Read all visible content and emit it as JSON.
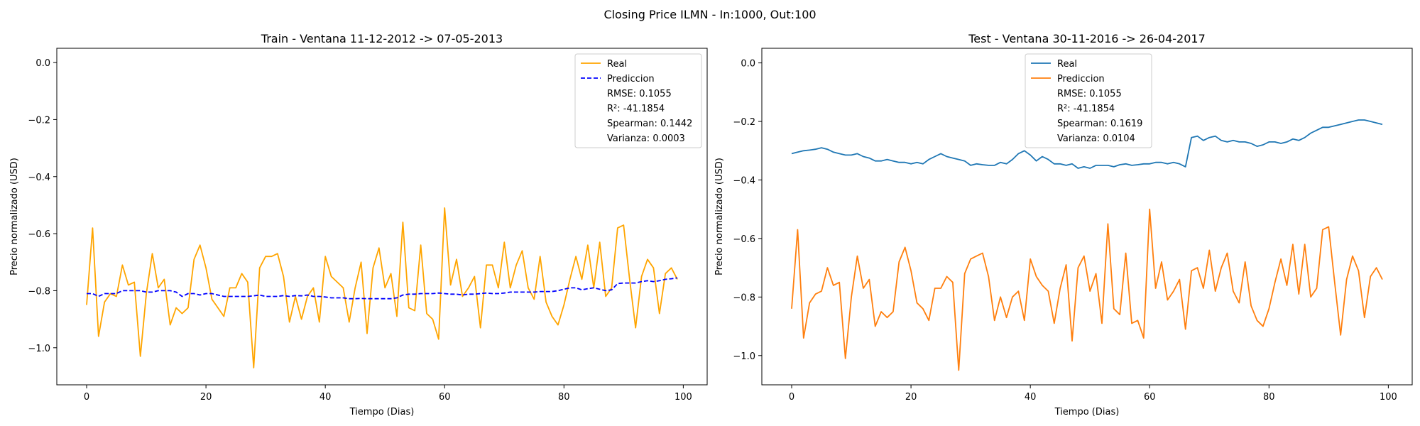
{
  "suptitle": "Closing Price ILMN - In:1000, Out:100",
  "colors": {
    "orange": "#ffa500",
    "blue_dashed": "#0000ff",
    "tab_blue": "#1f77b4",
    "tab_orange": "#ff7f0e"
  },
  "chart_data": [
    {
      "type": "line",
      "title": "Train - Ventana 11-12-2012 -> 07-05-2013",
      "xlabel": "Tiempo (Dias)",
      "ylabel": "Precio normalizado (USD)",
      "xlim": [
        -5,
        104
      ],
      "ylim": [
        -1.13,
        0.05
      ],
      "xticks": [
        0,
        20,
        40,
        60,
        80,
        100
      ],
      "yticks": [
        0.0,
        -0.2,
        -0.4,
        -0.6,
        -0.8,
        -1.0
      ],
      "ytick_labels": [
        "0.0",
        "−0.2",
        "−0.4",
        "−0.6",
        "−0.8",
        "−1.0"
      ],
      "grid": false,
      "legend_position": "top-right",
      "legend": [
        "Real",
        "Prediccion",
        "RMSE: 0.1055",
        "R²: -41.1854",
        "Spearman: 0.1442",
        "Varianza: 0.0003"
      ],
      "series": [
        {
          "name": "Real",
          "color": "#ffa500",
          "style": "solid",
          "values": [
            -0.85,
            -0.58,
            -0.96,
            -0.84,
            -0.81,
            -0.82,
            -0.71,
            -0.78,
            -0.77,
            -1.03,
            -0.81,
            -0.67,
            -0.79,
            -0.76,
            -0.92,
            -0.86,
            -0.88,
            -0.86,
            -0.69,
            -0.64,
            -0.72,
            -0.83,
            -0.86,
            -0.89,
            -0.79,
            -0.79,
            -0.74,
            -0.77,
            -1.07,
            -0.72,
            -0.68,
            -0.68,
            -0.67,
            -0.75,
            -0.91,
            -0.82,
            -0.9,
            -0.82,
            -0.79,
            -0.91,
            -0.68,
            -0.75,
            -0.77,
            -0.79,
            -0.91,
            -0.79,
            -0.7,
            -0.95,
            -0.72,
            -0.65,
            -0.79,
            -0.74,
            -0.89,
            -0.56,
            -0.86,
            -0.87,
            -0.64,
            -0.88,
            -0.9,
            -0.97,
            -0.51,
            -0.78,
            -0.69,
            -0.82,
            -0.79,
            -0.75,
            -0.93,
            -0.71,
            -0.71,
            -0.79,
            -0.63,
            -0.79,
            -0.71,
            -0.66,
            -0.79,
            -0.83,
            -0.68,
            -0.84,
            -0.89,
            -0.92,
            -0.85,
            -0.76,
            -0.68,
            -0.76,
            -0.64,
            -0.79,
            -0.63,
            -0.82,
            -0.79,
            -0.58,
            -0.57,
            -0.76,
            -0.93,
            -0.75,
            -0.69,
            -0.72,
            -0.88,
            -0.74,
            -0.72,
            -0.76
          ]
        },
        {
          "name": "Prediccion",
          "color": "#0000ff",
          "style": "dashed",
          "values": [
            -0.81,
            -0.81,
            -0.82,
            -0.81,
            -0.81,
            -0.81,
            -0.8,
            -0.8,
            -0.8,
            -0.8,
            -0.805,
            -0.805,
            -0.8,
            -0.8,
            -0.8,
            -0.805,
            -0.82,
            -0.81,
            -0.81,
            -0.815,
            -0.81,
            -0.81,
            -0.815,
            -0.82,
            -0.82,
            -0.82,
            -0.82,
            -0.82,
            -0.818,
            -0.815,
            -0.82,
            -0.82,
            -0.82,
            -0.817,
            -0.82,
            -0.817,
            -0.818,
            -0.815,
            -0.82,
            -0.82,
            -0.822,
            -0.825,
            -0.825,
            -0.825,
            -0.828,
            -0.828,
            -0.827,
            -0.828,
            -0.828,
            -0.828,
            -0.828,
            -0.828,
            -0.825,
            -0.815,
            -0.812,
            -0.812,
            -0.81,
            -0.81,
            -0.81,
            -0.808,
            -0.81,
            -0.812,
            -0.812,
            -0.815,
            -0.812,
            -0.812,
            -0.81,
            -0.808,
            -0.81,
            -0.81,
            -0.808,
            -0.805,
            -0.805,
            -0.805,
            -0.805,
            -0.805,
            -0.803,
            -0.803,
            -0.803,
            -0.8,
            -0.795,
            -0.79,
            -0.79,
            -0.797,
            -0.793,
            -0.79,
            -0.795,
            -0.8,
            -0.797,
            -0.775,
            -0.773,
            -0.773,
            -0.773,
            -0.768,
            -0.765,
            -0.768,
            -0.765,
            -0.76,
            -0.758,
            -0.755
          ]
        }
      ]
    },
    {
      "type": "line",
      "title": "Test - Ventana 30-11-2016 -> 26-04-2017",
      "xlabel": "Tiempo (Dias)",
      "ylabel": "Precio normalizado (USD)",
      "xlim": [
        -5,
        104
      ],
      "ylim": [
        -1.1,
        0.05
      ],
      "xticks": [
        0,
        20,
        40,
        60,
        80,
        100
      ],
      "yticks": [
        0.0,
        -0.2,
        -0.4,
        -0.6,
        -0.8,
        -1.0
      ],
      "ytick_labels": [
        "0.0",
        "−0.2",
        "−0.4",
        "−0.6",
        "−0.8",
        "−1.0"
      ],
      "grid": false,
      "legend_position": "top-center",
      "legend": [
        "Real",
        "Prediccion",
        "RMSE: 0.1055",
        "R²: -41.1854",
        "Spearman: 0.1619",
        "Varianza: 0.0104"
      ],
      "series": [
        {
          "name": "Real",
          "color": "#1f77b4",
          "style": "solid",
          "values": [
            -0.31,
            -0.305,
            -0.3,
            -0.298,
            -0.295,
            -0.29,
            -0.295,
            -0.305,
            -0.31,
            -0.315,
            -0.315,
            -0.31,
            -0.32,
            -0.325,
            -0.335,
            -0.335,
            -0.33,
            -0.335,
            -0.34,
            -0.34,
            -0.345,
            -0.34,
            -0.345,
            -0.33,
            -0.32,
            -0.31,
            -0.32,
            -0.325,
            -0.33,
            -0.335,
            -0.35,
            -0.345,
            -0.348,
            -0.35,
            -0.35,
            -0.34,
            -0.345,
            -0.33,
            -0.31,
            -0.3,
            -0.315,
            -0.335,
            -0.32,
            -0.33,
            -0.345,
            -0.345,
            -0.35,
            -0.345,
            -0.36,
            -0.355,
            -0.36,
            -0.35,
            -0.35,
            -0.35,
            -0.355,
            -0.348,
            -0.345,
            -0.35,
            -0.348,
            -0.345,
            -0.345,
            -0.34,
            -0.34,
            -0.345,
            -0.34,
            -0.345,
            -0.355,
            -0.255,
            -0.25,
            -0.265,
            -0.255,
            -0.25,
            -0.265,
            -0.27,
            -0.265,
            -0.27,
            -0.27,
            -0.275,
            -0.285,
            -0.28,
            -0.27,
            -0.27,
            -0.275,
            -0.27,
            -0.26,
            -0.265,
            -0.255,
            -0.24,
            -0.23,
            -0.22,
            -0.22,
            -0.215,
            -0.21,
            -0.205,
            -0.2,
            -0.195,
            -0.195,
            -0.2,
            -0.205,
            -0.21
          ]
        },
        {
          "name": "Prediccion",
          "color": "#ff7f0e",
          "style": "solid",
          "values": [
            -0.84,
            -0.57,
            -0.94,
            -0.82,
            -0.79,
            -0.78,
            -0.7,
            -0.76,
            -0.75,
            -1.01,
            -0.8,
            -0.66,
            -0.77,
            -0.74,
            -0.9,
            -0.85,
            -0.87,
            -0.85,
            -0.68,
            -0.63,
            -0.71,
            -0.82,
            -0.84,
            -0.88,
            -0.77,
            -0.77,
            -0.73,
            -0.75,
            -1.05,
            -0.72,
            -0.67,
            -0.66,
            -0.65,
            -0.73,
            -0.88,
            -0.8,
            -0.87,
            -0.8,
            -0.78,
            -0.88,
            -0.67,
            -0.73,
            -0.76,
            -0.78,
            -0.89,
            -0.77,
            -0.69,
            -0.95,
            -0.7,
            -0.66,
            -0.78,
            -0.72,
            -0.89,
            -0.55,
            -0.84,
            -0.86,
            -0.65,
            -0.89,
            -0.88,
            -0.94,
            -0.5,
            -0.77,
            -0.68,
            -0.81,
            -0.78,
            -0.74,
            -0.91,
            -0.71,
            -0.7,
            -0.77,
            -0.64,
            -0.78,
            -0.7,
            -0.65,
            -0.78,
            -0.82,
            -0.68,
            -0.83,
            -0.88,
            -0.9,
            -0.84,
            -0.75,
            -0.67,
            -0.76,
            -0.62,
            -0.79,
            -0.62,
            -0.8,
            -0.77,
            -0.57,
            -0.56,
            -0.75,
            -0.93,
            -0.74,
            -0.66,
            -0.71,
            -0.87,
            -0.73,
            -0.7,
            -0.74
          ]
        }
      ]
    }
  ]
}
